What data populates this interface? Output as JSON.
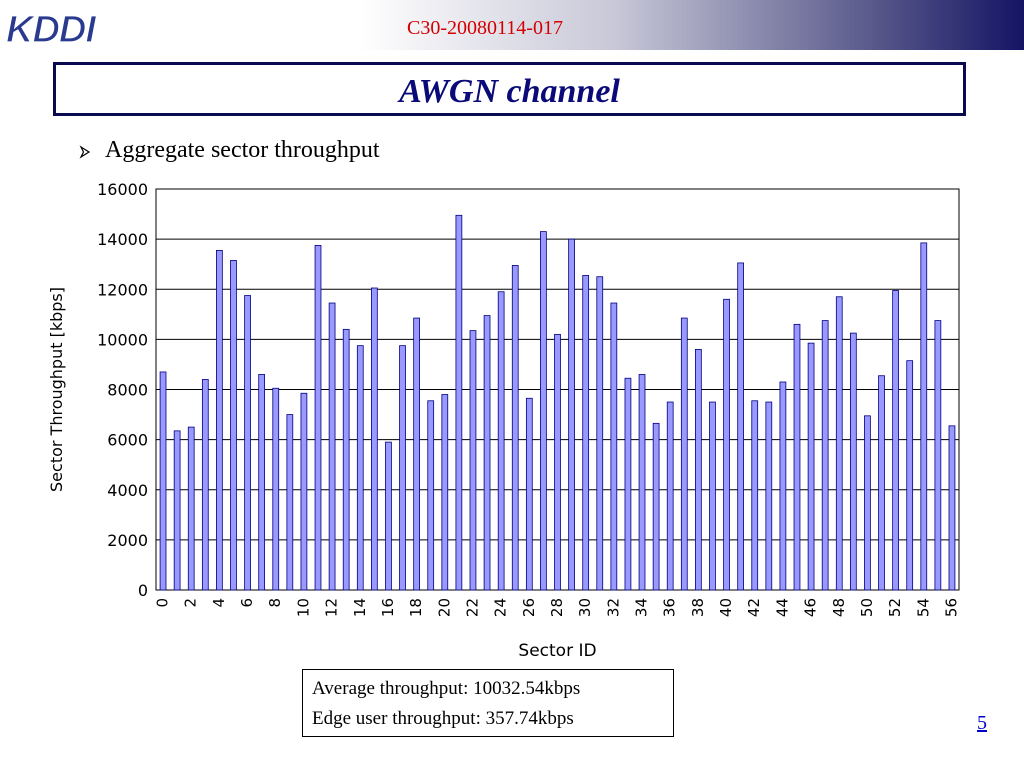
{
  "header": {
    "logo_text": "KDDI",
    "doc_id": "C30-20080114-017"
  },
  "slide": {
    "title": "AWGN channel",
    "bullet": "Aggregate sector throughput",
    "page_number": "5"
  },
  "info_box": {
    "line1": "Average throughput: 10032.54kbps",
    "line2": "Edge user throughput: 357.74kbps"
  },
  "colors": {
    "bar_fill": "#9999ff",
    "bar_stroke": "#000080",
    "title_color": "#0a0a78",
    "doc_id_color": "#d40000",
    "logo_color": "#2a3b8f"
  },
  "chart_data": {
    "type": "bar",
    "title": "",
    "xlabel": "Sector ID",
    "ylabel": "Sector Throughput [kbps]",
    "ylim": [
      0,
      16000
    ],
    "yticks": [
      0,
      2000,
      4000,
      6000,
      8000,
      10000,
      12000,
      14000,
      16000
    ],
    "xtick_labels": [
      "0",
      "2",
      "4",
      "6",
      "8",
      "10",
      "12",
      "14",
      "16",
      "18",
      "20",
      "22",
      "24",
      "26",
      "28",
      "30",
      "32",
      "34",
      "36",
      "38",
      "40",
      "42",
      "44",
      "46",
      "48",
      "50",
      "52",
      "54",
      "56"
    ],
    "grid": "horizontal",
    "categories": [
      "0",
      "1",
      "2",
      "3",
      "4",
      "5",
      "6",
      "7",
      "8",
      "9",
      "10",
      "11",
      "12",
      "13",
      "14",
      "15",
      "16",
      "17",
      "18",
      "19",
      "20",
      "21",
      "22",
      "23",
      "24",
      "25",
      "26",
      "27",
      "28",
      "29",
      "30",
      "31",
      "32",
      "33",
      "34",
      "35",
      "36",
      "37",
      "38",
      "39",
      "40",
      "41",
      "42",
      "43",
      "44",
      "45",
      "46",
      "47",
      "48",
      "49",
      "50",
      "51",
      "52",
      "53",
      "54",
      "55",
      "56"
    ],
    "values": [
      8700,
      6350,
      6500,
      8400,
      13550,
      13150,
      11750,
      8600,
      8050,
      7000,
      7850,
      13750,
      11450,
      10400,
      9750,
      12050,
      5900,
      9750,
      10850,
      7550,
      7800,
      14950,
      10350,
      10950,
      11900,
      12950,
      7650,
      14300,
      10200,
      14000,
      12550,
      12500,
      11450,
      8450,
      8600,
      6650,
      7500,
      10850,
      9600,
      7500,
      11600,
      13050,
      7550,
      7500,
      8300,
      10600,
      9850,
      10750,
      11700,
      10250,
      6950,
      8550,
      11950,
      9150,
      13850,
      10750,
      6550
    ]
  }
}
